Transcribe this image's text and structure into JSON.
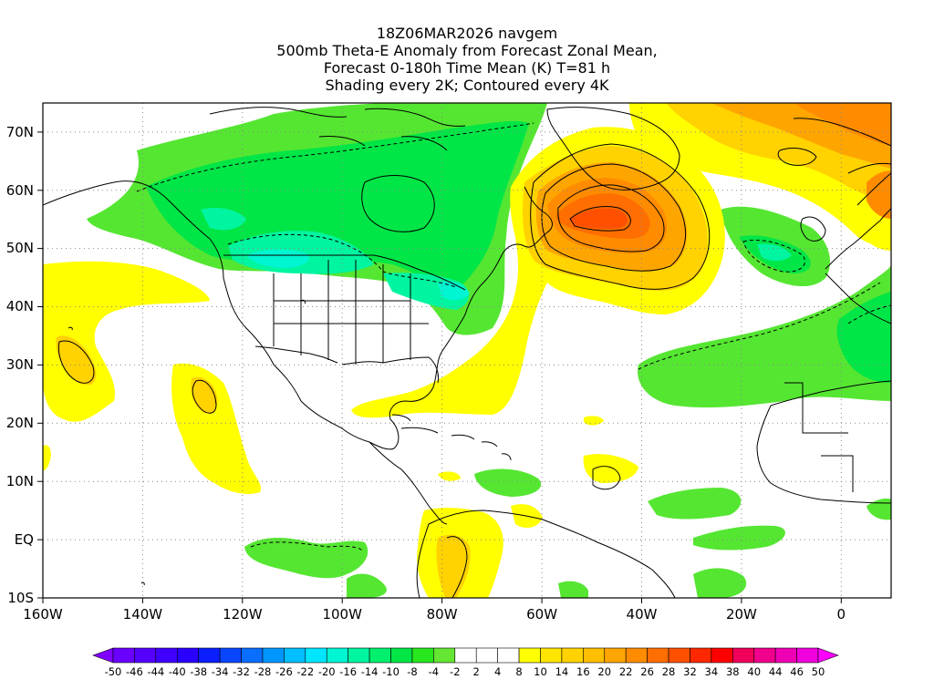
{
  "title_lines": [
    "18Z06MAR2026 navgem",
    "500mb Theta-E Anomaly from Forecast Zonal Mean,",
    "Forecast 0-180h Time Mean (K) T=81 h",
    "Shading every 2K; Contoured every 4K"
  ],
  "map": {
    "lon_range": [
      -160,
      10
    ],
    "lat_range": [
      -10,
      75
    ],
    "lon_ticks": [
      "160W",
      "140W",
      "120W",
      "100W",
      "80W",
      "60W",
      "40W",
      "20W",
      "0"
    ],
    "lat_ticks": [
      "10S",
      "EQ",
      "10N",
      "20N",
      "30N",
      "40N",
      "50N",
      "60N",
      "70N"
    ],
    "grid_style": "dotted"
  },
  "colorbar": {
    "labels": [
      "-50",
      "-46",
      "-44",
      "-40",
      "-38",
      "-34",
      "-32",
      "-28",
      "-26",
      "-22",
      "-20",
      "-16",
      "-14",
      "-10",
      "-8",
      "-4",
      "-2",
      "2",
      "4",
      "8",
      "10",
      "14",
      "16",
      "20",
      "22",
      "26",
      "28",
      "32",
      "34",
      "38",
      "40",
      "44",
      "46",
      "50"
    ],
    "colors": [
      "#7f00ff",
      "#6a00ff",
      "#5500ff",
      "#3f00ff",
      "#2a00ff",
      "#0a1eff",
      "#0a46ff",
      "#0a6eff",
      "#0096ff",
      "#00beff",
      "#00e6ff",
      "#00f5d2",
      "#00f5a0",
      "#00f06e",
      "#00e646",
      "#28e61e",
      "#64e632",
      "#ffffff",
      "#ffffff",
      "#ffffff",
      "#ffff00",
      "#ffe600",
      "#ffd200",
      "#ffbe00",
      "#ffa500",
      "#ff8c00",
      "#ff6e00",
      "#ff5000",
      "#ff2800",
      "#ff0000",
      "#f0005a",
      "#f0008c",
      "#f000b4",
      "#f000dc",
      "#ff00ff"
    ]
  }
}
